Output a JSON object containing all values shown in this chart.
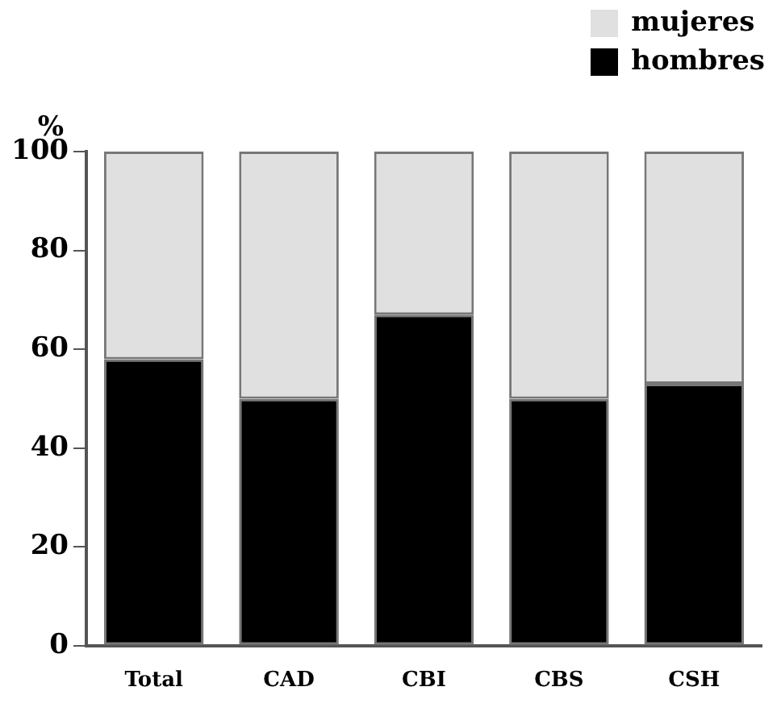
{
  "chart_data": {
    "type": "bar",
    "stacked": true,
    "ylabel": "%",
    "categories": [
      "Total",
      "CAD",
      "CBI",
      "CBS",
      "CSH"
    ],
    "series": [
      {
        "name": "hombres",
        "color": "#000000",
        "values": [
          58,
          50,
          67,
          50,
          53
        ]
      },
      {
        "name": "mujeres",
        "color": "#e0e0e0",
        "values": [
          42,
          50,
          33,
          50,
          47
        ]
      }
    ],
    "ylim": [
      0,
      100
    ],
    "yticks": [
      0,
      20,
      40,
      60,
      80,
      100
    ],
    "grid": false,
    "legend": "top right"
  }
}
